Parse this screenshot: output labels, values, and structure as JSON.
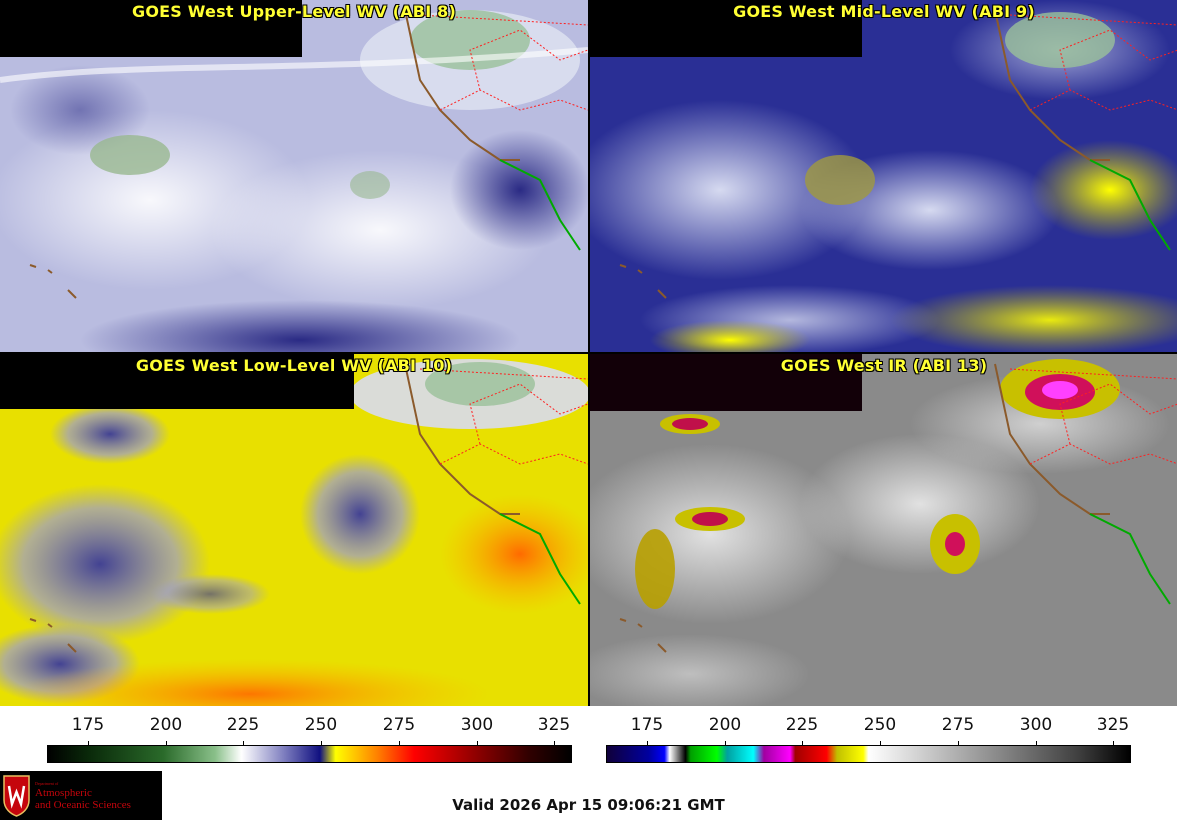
{
  "panels": [
    {
      "title": "GOES West Upper-Level WV (ABI 8)"
    },
    {
      "title": "GOES West Mid-Level WV (ABI 9)"
    },
    {
      "title": "GOES West Low-Level WV (ABI 10)"
    },
    {
      "title": "GOES West IR (ABI 13)"
    }
  ],
  "colorbar_wv": {
    "ticks": [
      "175",
      "200",
      "225",
      "250",
      "275",
      "300",
      "325"
    ]
  },
  "colorbar_ir": {
    "ticks": [
      "175",
      "200",
      "225",
      "250",
      "275",
      "300",
      "325"
    ]
  },
  "valid_time": "Valid 2026 Apr 15 09:06:21 GMT",
  "logo": {
    "dept": "Department of",
    "line1": "Atmospheric",
    "line2": "and Oceanic Sciences"
  },
  "colors": {
    "title": "#ffff33",
    "coast": "#8b5a2b",
    "state_border": "#ff2020",
    "mexico_coast": "#00aa00"
  }
}
